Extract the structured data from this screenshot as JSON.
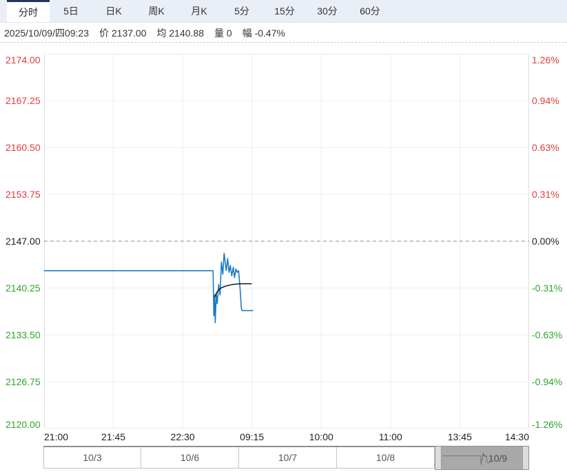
{
  "tab_bar": {
    "items": [
      {
        "label": "分时",
        "selected": true
      },
      {
        "label": "5日",
        "selected": false
      },
      {
        "label": "日K",
        "selected": false
      },
      {
        "label": "周K",
        "selected": false
      },
      {
        "label": "月K",
        "selected": false
      },
      {
        "label": "5分",
        "selected": false
      },
      {
        "label": "15分",
        "selected": false
      },
      {
        "label": "30分",
        "selected": false
      },
      {
        "label": "60分",
        "selected": false
      }
    ]
  },
  "info_bar": {
    "datetime": "2025/10/09/四09:23",
    "fields": [
      {
        "label": "价",
        "value": "2137.00"
      },
      {
        "label": "均",
        "value": "2140.88"
      },
      {
        "label": "量",
        "value": "0"
      },
      {
        "label": "幅",
        "value": "-0.47%"
      }
    ]
  },
  "chart_data": {
    "type": "line",
    "title": "",
    "xlabel": "",
    "ylabel": "",
    "ylim": [
      2120.0,
      2174.0
    ],
    "prev_close": 2147.0,
    "current_price": 2137.0,
    "average_price": 2140.88,
    "change_percent": -0.47,
    "grid": true,
    "left_axis_labels": [
      "2174.00",
      "2167.25",
      "2160.50",
      "2153.75",
      "2147.00",
      "2140.25",
      "2133.50",
      "2126.75",
      "2120.00"
    ],
    "right_axis_labels": [
      "1.26%",
      "0.94%",
      "0.63%",
      "0.31%",
      "0.00%",
      "-0.31%",
      "-0.63%",
      "-0.94%",
      "-1.26%"
    ],
    "x_tick_labels": [
      "21:00",
      "21:45",
      "22:30",
      "09:15",
      "10:00",
      "11:00",
      "13:45",
      "14:30"
    ],
    "series": [
      {
        "name": "price",
        "points": [
          [
            0.0,
            2142.75
          ],
          [
            0.3485,
            2142.75
          ],
          [
            0.35,
            2136.25
          ],
          [
            0.3514,
            2139.25
          ],
          [
            0.3528,
            2135.25
          ],
          [
            0.355,
            2139.5
          ],
          [
            0.357,
            2138.0
          ],
          [
            0.36,
            2140.75
          ],
          [
            0.3628,
            2139.25
          ],
          [
            0.3656,
            2144.0
          ],
          [
            0.3684,
            2142.25
          ],
          [
            0.3712,
            2145.25
          ],
          [
            0.3755,
            2142.75
          ],
          [
            0.3784,
            2144.5
          ],
          [
            0.3812,
            2142.5
          ],
          [
            0.384,
            2143.5
          ],
          [
            0.387,
            2142.0
          ],
          [
            0.39,
            2143.25
          ],
          [
            0.3926,
            2141.75
          ],
          [
            0.3954,
            2143.0
          ],
          [
            0.398,
            2142.5
          ],
          [
            0.401,
            2142.75
          ],
          [
            0.404,
            2140.25
          ],
          [
            0.4068,
            2137.25
          ],
          [
            0.408,
            2137.0
          ],
          [
            0.431,
            2137.0
          ]
        ]
      },
      {
        "name": "average",
        "points": [
          [
            0.3514,
            2138.9
          ],
          [
            0.355,
            2139.5
          ],
          [
            0.36,
            2140.0
          ],
          [
            0.366,
            2140.3
          ],
          [
            0.373,
            2140.5
          ],
          [
            0.381,
            2140.65
          ],
          [
            0.39,
            2140.78
          ],
          [
            0.4,
            2140.85
          ],
          [
            0.412,
            2140.88
          ],
          [
            0.428,
            2140.88
          ]
        ]
      }
    ]
  },
  "date_nav": {
    "items": [
      {
        "label": "10/3",
        "selected": false
      },
      {
        "label": "10/6",
        "selected": false
      },
      {
        "label": "10/7",
        "selected": false
      },
      {
        "label": "10/8",
        "selected": false
      },
      {
        "label": "10/9",
        "selected": true
      }
    ]
  },
  "colors": {
    "up": "#e23c3c",
    "down": "#2aa62a",
    "neutral": "#222222",
    "price_line": "#1a7bc4",
    "avg_line": "#1a1a1a",
    "tab_accent": "#20375c",
    "grid_line": "#ececec",
    "zero_dash": "#888888"
  }
}
